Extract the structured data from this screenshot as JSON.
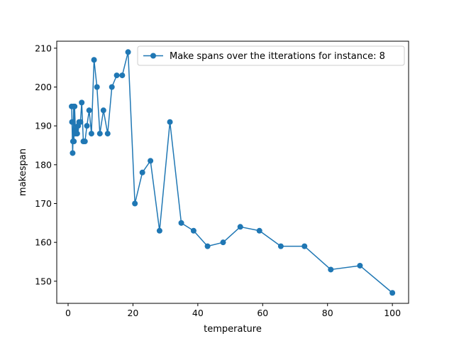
{
  "chart_data": {
    "type": "line",
    "title": "",
    "xlabel": "temperature",
    "ylabel": "makespan",
    "xlim": [
      -3.5,
      105.0
    ],
    "ylim": [
      144.3,
      211.8
    ],
    "xticks": [
      0,
      20,
      40,
      60,
      80,
      100
    ],
    "yticks": [
      150,
      160,
      170,
      180,
      190,
      200,
      210
    ],
    "grid": false,
    "legend_position": "upper-right",
    "series": [
      {
        "name": "Make spans over the itterations for instance: 8",
        "color": "#1f77b4",
        "marker": "circle",
        "x": [
          100.0,
          90.0,
          81.0,
          72.9,
          65.6,
          59.0,
          53.1,
          47.8,
          43.0,
          38.7,
          34.9,
          31.4,
          28.2,
          25.4,
          22.9,
          20.6,
          18.5,
          16.7,
          15.0,
          13.5,
          12.2,
          10.9,
          9.8,
          8.9,
          8.0,
          7.2,
          6.5,
          5.8,
          5.2,
          4.7,
          4.2,
          3.8,
          3.4,
          3.1,
          2.8,
          2.5,
          2.3,
          2.0,
          1.8,
          1.7,
          1.5,
          1.4,
          1.2,
          1.1
        ],
        "y": [
          147,
          154,
          153,
          159,
          159,
          163,
          164,
          160,
          159,
          163,
          165,
          191,
          163,
          181,
          178,
          170,
          209,
          203,
          203,
          200,
          188,
          194,
          188,
          200,
          207,
          188,
          194,
          190,
          186,
          186,
          196,
          191,
          191,
          190,
          188,
          189,
          188,
          195,
          186,
          195,
          186,
          183,
          191,
          195
        ]
      }
    ]
  }
}
